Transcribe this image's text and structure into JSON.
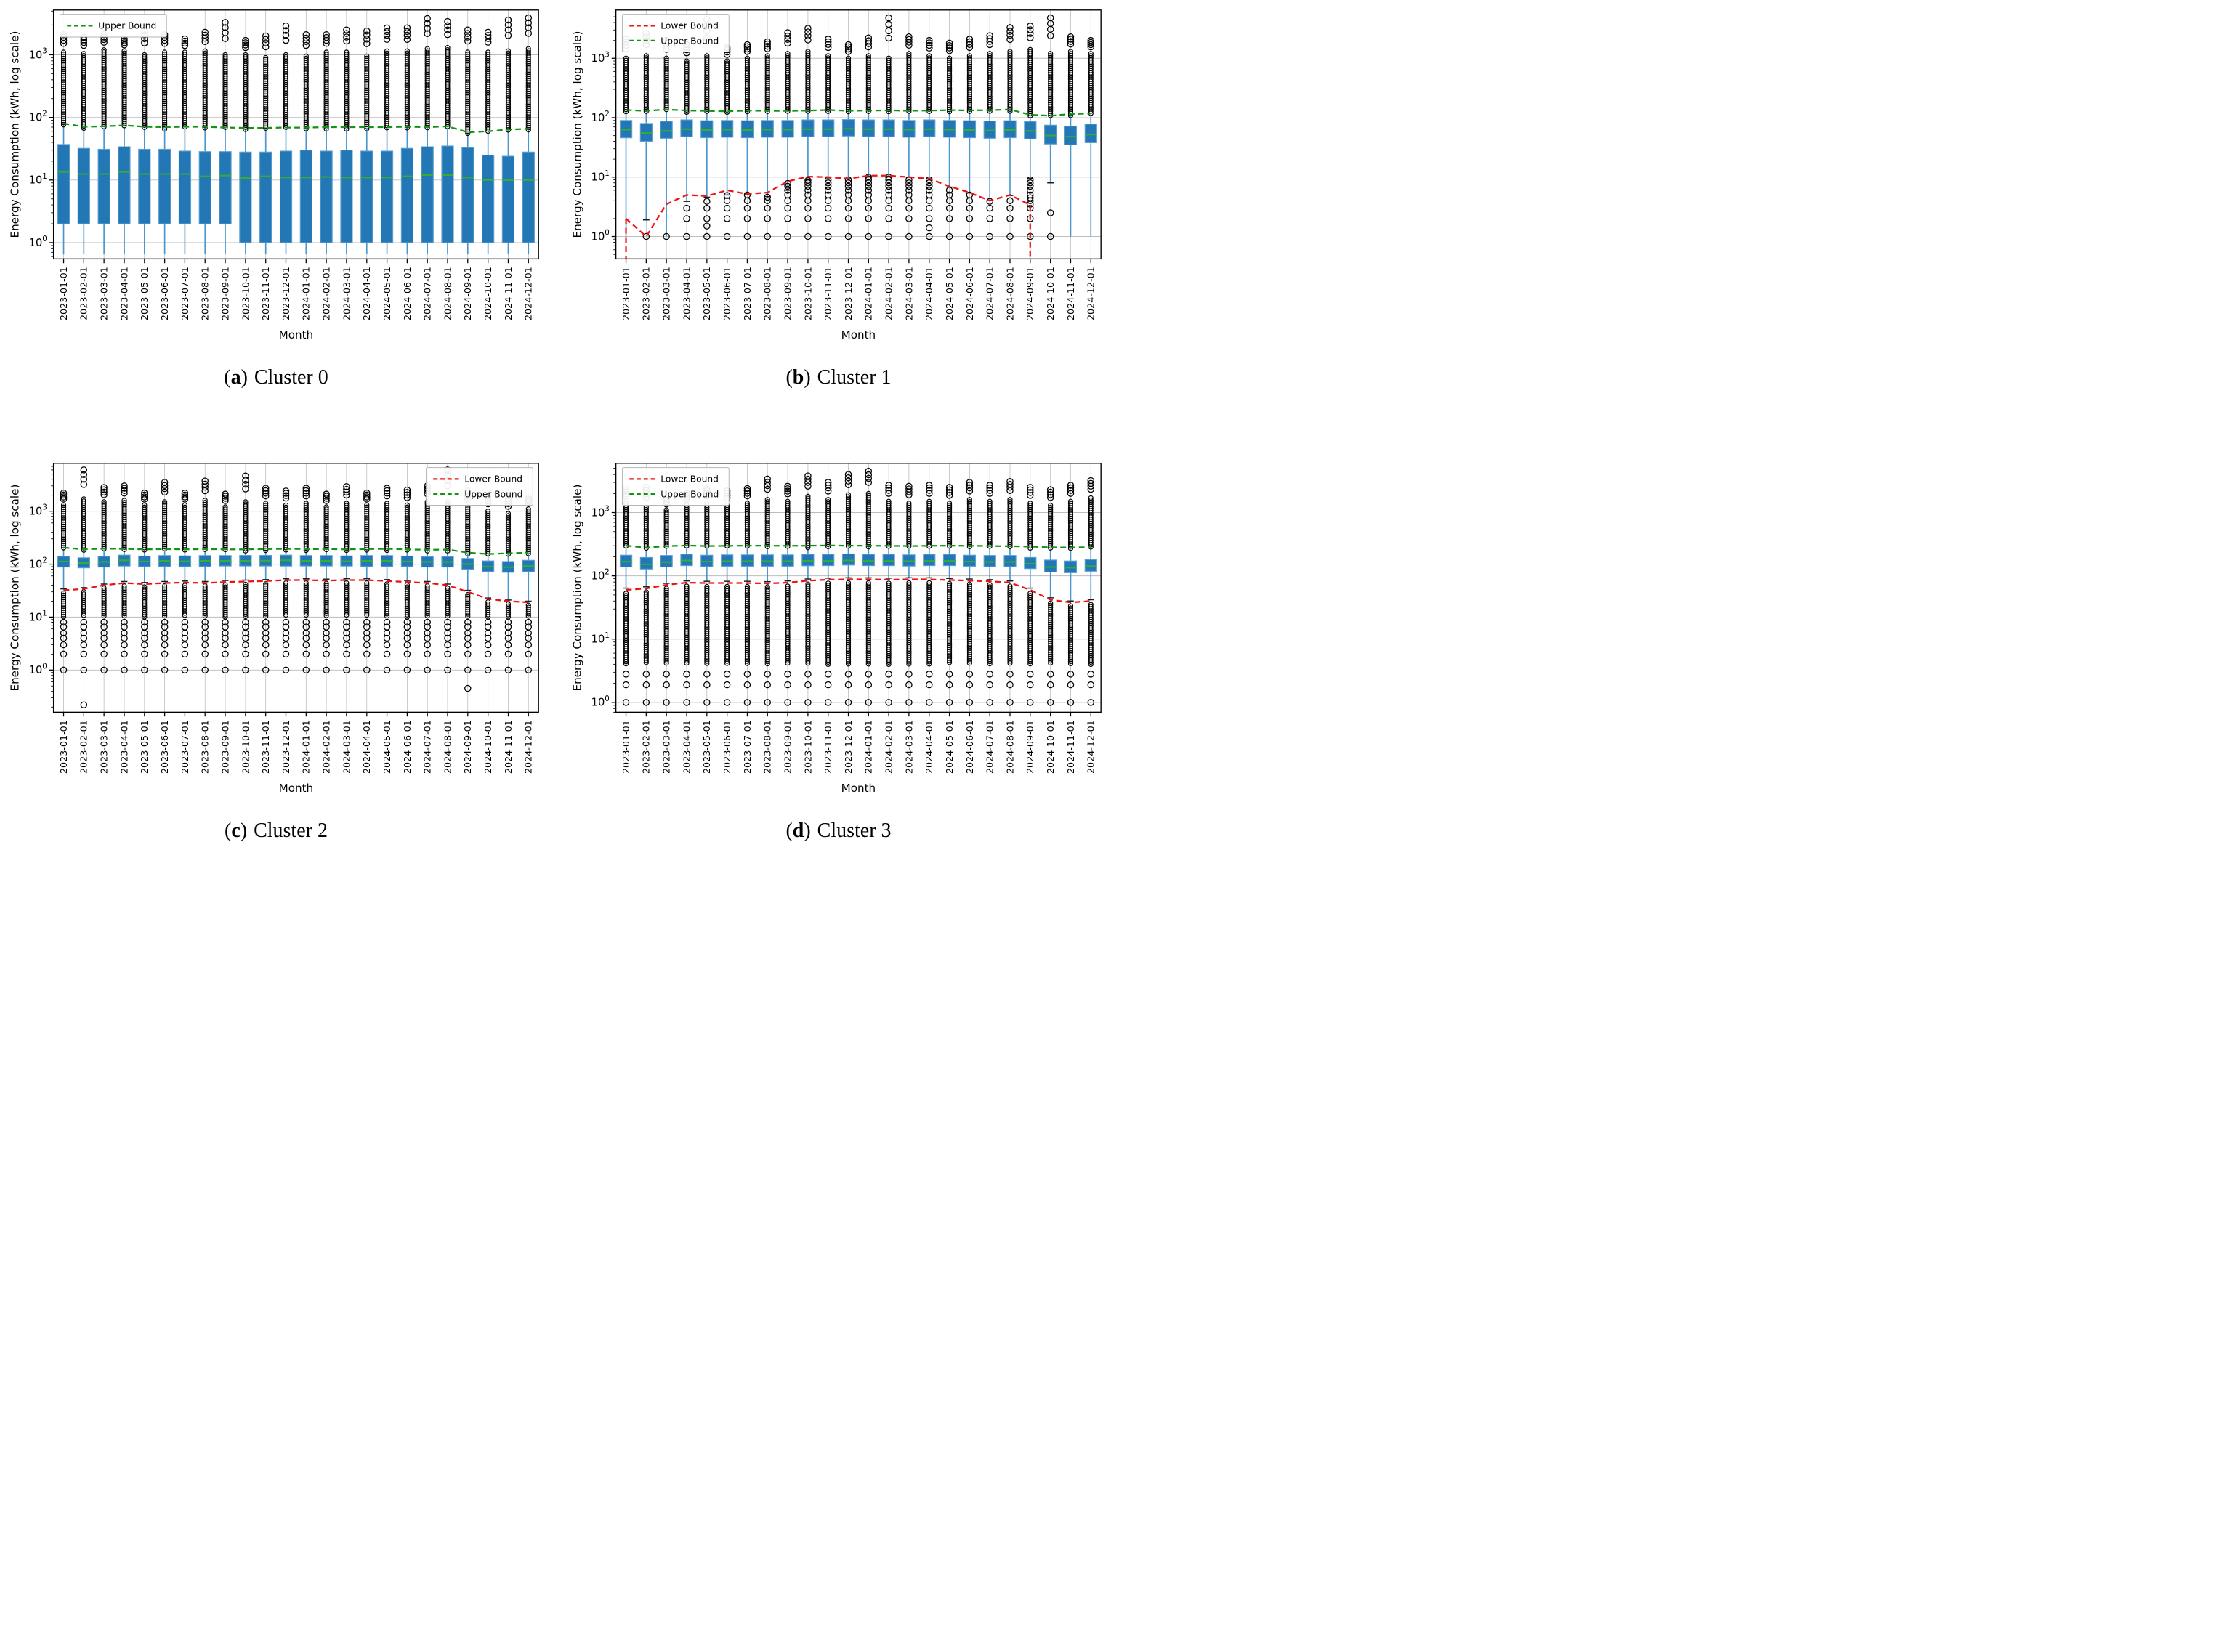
{
  "figure": {
    "ylabel": "Energy Consumption (kWh, log scale)",
    "xlabel": "Month",
    "legend_labels": {
      "lower": "Lower Bound",
      "upper": "Upper Bound"
    },
    "colors": {
      "box_fill": "#2277b4",
      "box_edge": "#5c9fd4",
      "median": "#35ad35",
      "whisker": "#4a96cf",
      "cap": "#1a1a1a",
      "outlier": "#000000",
      "upper_bound": "#119411",
      "lower_bound": "#ee1111",
      "grid": "#bdbdbd",
      "axis": "#000000",
      "legend_border": "#b5b5b5"
    }
  },
  "chart_data": {
    "type": "boxplot-grid",
    "x_categories": [
      "2023-01-01",
      "2023-02-01",
      "2023-03-01",
      "2023-04-01",
      "2023-05-01",
      "2023-06-01",
      "2023-07-01",
      "2023-08-01",
      "2023-09-01",
      "2023-10-01",
      "2023-11-01",
      "2023-12-01",
      "2024-01-01",
      "2024-02-01",
      "2024-03-01",
      "2024-04-01",
      "2024-05-01",
      "2024-06-01",
      "2024-07-01",
      "2024-08-01",
      "2024-09-01",
      "2024-10-01",
      "2024-11-01",
      "2024-12-01"
    ],
    "panels": [
      {
        "caption": {
          "open": "(",
          "letter": "a",
          "close": ")",
          "title": "Cluster 0"
        },
        "legend": [
          "upper"
        ],
        "legend_pos": "nw",
        "ylim": [
          0.55,
          5200
        ],
        "upper_bound": [
          80,
          71,
          72,
          75,
          71,
          70,
          71,
          71,
          69,
          68,
          68,
          69,
          69,
          70,
          70,
          70,
          70,
          71,
          70,
          72,
          58,
          60,
          64,
          66
        ],
        "lower_bound": null,
        "lb_end_drops": false,
        "caps_low": false,
        "q1": [
          2,
          2,
          2,
          2,
          2,
          2,
          2,
          2,
          2,
          1,
          1,
          1,
          1,
          1,
          1,
          1,
          1,
          1,
          1,
          1,
          1,
          1,
          1,
          1
        ],
        "med": [
          13.5,
          12.5,
          12.5,
          13.5,
          12.5,
          12.5,
          12.5,
          11.5,
          11.8,
          10.8,
          11.5,
          11,
          11,
          11.2,
          11,
          11,
          11,
          11.5,
          12,
          12,
          11,
          10,
          10,
          10
        ],
        "q3": [
          37,
          32,
          31,
          34,
          31,
          31,
          29,
          28.5,
          28.5,
          28,
          28,
          29,
          30,
          29,
          30,
          29,
          29,
          32,
          34,
          35,
          33,
          25,
          24,
          28
        ],
        "lo_all": 0.65,
        "lo": null,
        "out_top_dense_to": [
          1100,
          1050,
          1200,
          1150,
          1000,
          1100,
          1100,
          1150,
          1000,
          1000,
          900,
          1000,
          950,
          1100,
          1100,
          950,
          1150,
          1150,
          1250,
          1300,
          1100,
          1100,
          1150,
          1250
        ],
        "out_top_max": [
          2100,
          1900,
          2100,
          1800,
          2400,
          2100,
          1800,
          2300,
          3300,
          1700,
          2000,
          2900,
          2100,
          2100,
          2500,
          2400,
          2700,
          2700,
          3800,
          3400,
          2500,
          2300,
          3600,
          3900
        ],
        "out_bottom": null,
        "bottom_pattern": null
      },
      {
        "caption": {
          "open": "(",
          "letter": "b",
          "close": ")",
          "title": "Cluster 1"
        },
        "legend": [
          "lower",
          "upper"
        ],
        "legend_pos": "nw",
        "ylim": [
          0.42,
          6500
        ],
        "upper_bound": [
          135,
          130,
          138,
          132,
          130,
          128,
          132,
          130,
          130,
          132,
          135,
          131,
          132,
          133,
          131,
          132,
          134,
          133,
          134,
          137,
          112,
          108,
          115,
          118
        ],
        "lower_bound": [
          2,
          1,
          3.5,
          5,
          4.8,
          6,
          5.2,
          5.5,
          8.5,
          10.2,
          10,
          9.4,
          10.6,
          10.6,
          10,
          9.4,
          7,
          5.5,
          4,
          5,
          3.4,
          null,
          null,
          null
        ],
        "lb_end_drops": true,
        "caps_low": true,
        "q1": [
          46,
          40,
          45,
          48,
          46,
          47,
          46,
          47,
          47,
          48,
          48,
          49,
          48,
          48,
          47,
          48,
          47,
          46,
          45,
          46,
          44,
          36,
          35,
          38
        ],
        "med": [
          63,
          55,
          60,
          64,
          62,
          63,
          62,
          63,
          63,
          64,
          64,
          65,
          64,
          64,
          63,
          64,
          63,
          62,
          61,
          62,
          60,
          50,
          48,
          52
        ],
        "q3": [
          90,
          80,
          87,
          92,
          89,
          90,
          89,
          90,
          90,
          92,
          92,
          93,
          92,
          92,
          90,
          92,
          90,
          89,
          88,
          89,
          86,
          75,
          72,
          78
        ],
        "lo_all": null,
        "lo": [
          1,
          1.9,
          1,
          3.9,
          4.6,
          5,
          5.2,
          4.7,
          6,
          9,
          9.7,
          9.3,
          10.4,
          10.4,
          10,
          9.4,
          6.8,
          5.4,
          4,
          4.9,
          9.5,
          8,
          1,
          1
        ],
        "out_top_dense_to": [
          1000,
          1100,
          1000,
          900,
          1100,
          900,
          1000,
          1100,
          1200,
          1300,
          1100,
          1000,
          1100,
          1000,
          1200,
          1100,
          1000,
          1100,
          1200,
          1300,
          1400,
          1200,
          1300,
          1200
        ],
        "out_top_max": [
          2100,
          2600,
          2000,
          1700,
          4500,
          1500,
          1700,
          1900,
          2700,
          3200,
          2100,
          1700,
          2200,
          4800,
          2300,
          2000,
          1800,
          2100,
          2400,
          3300,
          3500,
          4800,
          2300,
          2000
        ],
        "out_bottom": [
          [],
          [
            1
          ],
          [
            1
          ],
          [
            1,
            2,
            3
          ],
          [
            1,
            1.5,
            2,
            3,
            3.9
          ],
          [
            1,
            2,
            3,
            4,
            4.9
          ],
          [
            1,
            2,
            3,
            4,
            5
          ],
          [
            1,
            2,
            3,
            4,
            4.6
          ],
          [
            1,
            2,
            3,
            4,
            5,
            6,
            7,
            7.8
          ],
          [
            1,
            2,
            3,
            4,
            5,
            6,
            7,
            8,
            8.8
          ],
          [
            1,
            2,
            3,
            4,
            5,
            6,
            7,
            8,
            9
          ],
          [
            1,
            2,
            3,
            4,
            5,
            6,
            7,
            8,
            9
          ],
          [
            1,
            2,
            3,
            4,
            5,
            6,
            7,
            8,
            9,
            10
          ],
          [
            1,
            2,
            3,
            4,
            5,
            6,
            7,
            8,
            9,
            10
          ],
          [
            1,
            2,
            3,
            4,
            5,
            6,
            7,
            8,
            9
          ],
          [
            1,
            1.4,
            2,
            3,
            4,
            5,
            6,
            7,
            8,
            9
          ],
          [
            1,
            2,
            3,
            4,
            5,
            6
          ],
          [
            1,
            2,
            3,
            4,
            5
          ],
          [
            1,
            2,
            3,
            3.9
          ],
          [
            1,
            2,
            3,
            4
          ],
          [
            1,
            2,
            3,
            3.5,
            4,
            4.5,
            5,
            6,
            7,
            8,
            9
          ],
          [
            1,
            2.5
          ],
          [],
          []
        ],
        "bottom_pattern": null
      },
      {
        "caption": {
          "open": "(",
          "letter": "c",
          "close": ")",
          "title": "Cluster 2"
        },
        "legend": [
          "lower",
          "upper"
        ],
        "legend_pos": "ne",
        "ylim": [
          0.16,
          8000
        ],
        "upper_bound": [
          205,
          190,
          196,
          194,
          190,
          192,
          190,
          192,
          190,
          190,
          192,
          194,
          192,
          192,
          190,
          192,
          194,
          190,
          186,
          188,
          165,
          155,
          160,
          164
        ],
        "lower_bound": [
          32,
          34,
          40,
          44,
          42,
          44,
          45,
          44,
          46,
          47,
          48,
          50,
          50,
          49,
          50,
          50,
          48,
          46,
          44,
          40,
          30,
          22,
          20,
          19
        ],
        "lb_end_drops": false,
        "caps_low": true,
        "q1": [
          88,
          85,
          88,
          92,
          90,
          90,
          90,
          90,
          92,
          92,
          92,
          92,
          92,
          92,
          92,
          90,
          90,
          90,
          88,
          88,
          80,
          72,
          70,
          72
        ],
        "med": [
          112,
          105,
          110,
          118,
          112,
          115,
          113,
          115,
          115,
          115,
          116,
          118,
          115,
          115,
          113,
          115,
          115,
          112,
          110,
          110,
          100,
          90,
          88,
          92
        ],
        "q3": [
          140,
          132,
          140,
          148,
          142,
          145,
          143,
          145,
          145,
          146,
          146,
          148,
          145,
          145,
          143,
          145,
          145,
          142,
          138,
          138,
          128,
          115,
          112,
          118
        ],
        "lo_all": null,
        "lo": [
          34,
          36,
          42,
          47,
          45,
          47,
          48,
          47,
          49,
          50,
          51,
          53,
          53,
          52,
          53,
          53,
          51,
          49,
          47,
          42,
          32,
          23,
          21,
          20
        ],
        "out_top_dense_to": [
          1300,
          1700,
          1500,
          1600,
          1300,
          1500,
          1300,
          1600,
          1200,
          1500,
          1400,
          1300,
          1400,
          1200,
          1400,
          1300,
          1400,
          1300,
          1500,
          1500,
          1200,
          1000,
          900,
          1100
        ],
        "out_top_max": [
          2200,
          6000,
          2800,
          3000,
          2200,
          3500,
          2200,
          3700,
          2100,
          4600,
          2700,
          2400,
          2700,
          2100,
          2900,
          2200,
          2700,
          2500,
          3000,
          6000,
          2400,
          1900,
          1700,
          1800
        ],
        "out_bottom": null,
        "bottom_pattern": {
          "dense_to": 10,
          "discrete": [
            8,
            6.5,
            5,
            4,
            3,
            2,
            1
          ],
          "strays": [
            {
              "month_index": 1,
              "value": 0.22
            },
            {
              "month_index": 20,
              "value": 0.45
            }
          ]
        }
      },
      {
        "caption": {
          "open": "(",
          "letter": "d",
          "close": ")",
          "title": "Cluster 3"
        },
        "legend": [
          "lower",
          "upper"
        ],
        "legend_pos": "nw",
        "ylim": [
          0.7,
          6000
        ],
        "upper_bound": [
          300,
          278,
          295,
          302,
          296,
          298,
          300,
          300,
          298,
          300,
          302,
          300,
          300,
          298,
          296,
          298,
          300,
          298,
          296,
          294,
          290,
          282,
          280,
          284
        ],
        "lower_bound": [
          60,
          63,
          72,
          78,
          77,
          77,
          77,
          76,
          78,
          84,
          87,
          88,
          88,
          87,
          88,
          88,
          86,
          84,
          82,
          78,
          60,
          42,
          38,
          40
        ],
        "lb_end_drops": false,
        "caps_low": true,
        "q1": [
          138,
          128,
          138,
          145,
          140,
          142,
          142,
          142,
          142,
          144,
          145,
          148,
          145,
          145,
          143,
          145,
          145,
          142,
          140,
          140,
          130,
          115,
          112,
          118
        ],
        "med": [
          168,
          152,
          165,
          175,
          168,
          170,
          170,
          170,
          170,
          172,
          172,
          175,
          172,
          172,
          170,
          172,
          172,
          168,
          166,
          166,
          155,
          138,
          135,
          142
        ],
        "q3": [
          212,
          195,
          210,
          220,
          212,
          215,
          215,
          215,
          215,
          218,
          218,
          222,
          218,
          218,
          215,
          218,
          218,
          212,
          210,
          210,
          195,
          178,
          172,
          180
        ],
        "lo_all": null,
        "lo": [
          64,
          67,
          76,
          83,
          82,
          82,
          82,
          81,
          83,
          89,
          92,
          93,
          93,
          92,
          93,
          93,
          91,
          89,
          87,
          83,
          64,
          45,
          40,
          42
        ],
        "out_top_dense_to": [
          1400,
          1200,
          1100,
          1300,
          1400,
          1300,
          1400,
          1600,
          1500,
          1800,
          1600,
          1900,
          2000,
          1500,
          1400,
          1500,
          1400,
          1600,
          1500,
          1600,
          1400,
          1300,
          1500,
          1700
        ],
        "out_top_max": [
          2300,
          2500,
          1700,
          2000,
          2400,
          2200,
          2400,
          3400,
          2600,
          3800,
          3000,
          4000,
          4500,
          2700,
          2600,
          2700,
          2500,
          3000,
          2700,
          3100,
          2500,
          2300,
          2700,
          3200
        ],
        "out_bottom": null,
        "bottom_pattern": {
          "dense_to": 4,
          "discrete": [
            2.8,
            1.9,
            1
          ],
          "strays": []
        }
      }
    ]
  }
}
